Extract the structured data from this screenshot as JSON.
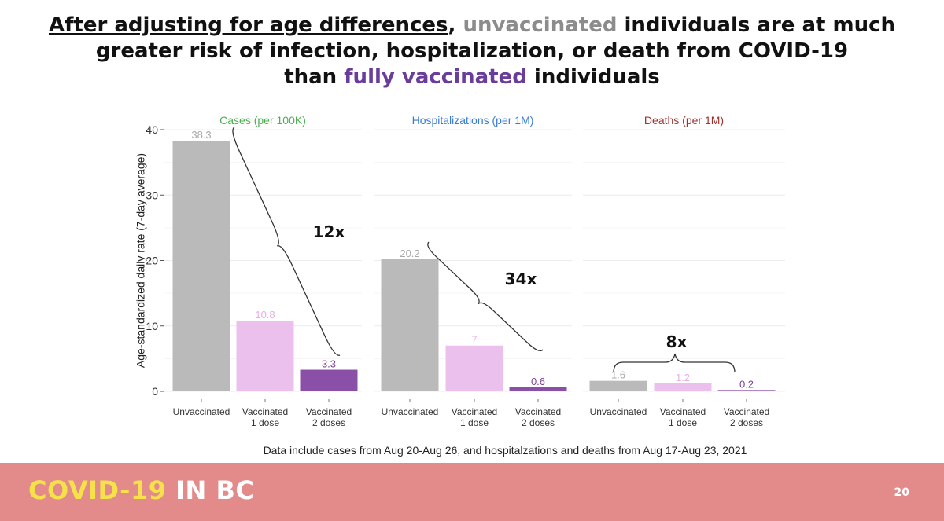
{
  "title": {
    "underlined": "After adjusting for age differences",
    "comma": ",",
    "unvaccinated": "unvaccinated",
    "line1_rest": " individuals are at much",
    "line2": "greater risk of infection, hospitalization, or death from COVID-19",
    "line3_pre": "than ",
    "fully_vaccinated": "fully vaccinated",
    "line3_post": " individuals"
  },
  "chart_data": {
    "type": "bar",
    "ylabel": "Age-standardized daily rate (7-day average)",
    "ylim": [
      0,
      40
    ],
    "yticks": [
      0,
      10,
      20,
      30,
      40
    ],
    "grid": true,
    "categories": [
      [
        "Unvaccinated"
      ],
      [
        "Vaccinated",
        "1 dose"
      ],
      [
        "Vaccinated",
        "2 doses"
      ]
    ],
    "panels": [
      {
        "title": "Cases (per 100K)",
        "title_color": "#4caf50",
        "values": [
          38.3,
          10.8,
          3.3
        ],
        "labels": [
          "38.3",
          "10.8",
          "3.3"
        ],
        "annotation": "12x"
      },
      {
        "title": "Hospitalizations (per 1M)",
        "title_color": "#3a7bd5",
        "values": [
          20.2,
          7,
          0.6
        ],
        "labels": [
          "20.2",
          "7",
          "0.6"
        ],
        "annotation": "34x"
      },
      {
        "title": "Deaths (per 1M)",
        "title_color": "#a0322e",
        "values": [
          1.6,
          1.2,
          0.2
        ],
        "labels": [
          "1.6",
          "1.2",
          "0.2"
        ],
        "annotation": "8x"
      }
    ],
    "bar_colors": [
      "#bababa",
      "#ecc0ec",
      "#8a4fa6"
    ],
    "label_colors": [
      "#a8a8a8",
      "#e7aee7",
      "#7a3f96"
    ],
    "note": "Data include cases from Aug 20-Aug 26, and hospitalzations and deaths from Aug 17-Aug 23, 2021"
  },
  "footer": {
    "brand_part1": "COVID-19",
    "brand_part2": " IN BC",
    "page_number": "20"
  }
}
